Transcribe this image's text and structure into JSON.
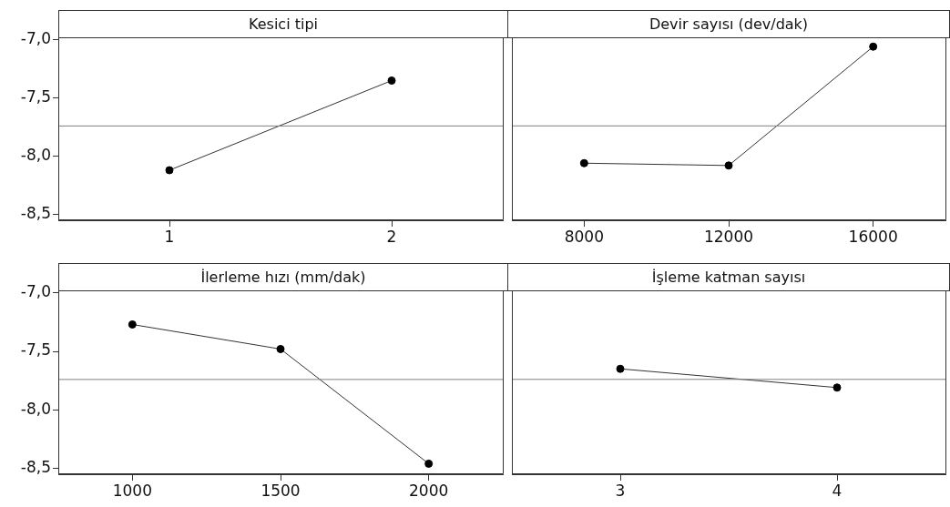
{
  "chart_data": [
    {
      "type": "line",
      "title": "Kesici tipi",
      "categories": [
        "1",
        "2"
      ],
      "series": [
        {
          "color": "#000000",
          "values": [
            -8.12,
            -7.35
          ]
        }
      ],
      "ylim": [
        -8.55,
        -6.98
      ],
      "yticks": [
        {
          "value": -8.5,
          "label": "-8,5"
        },
        {
          "value": -8,
          "label": "-8,0"
        },
        {
          "value": -7.5,
          "label": "-7,5"
        },
        {
          "value": -7,
          "label": "-7,0"
        }
      ],
      "ref_lines": [
        {
          "axis": "y",
          "value": -7.74,
          "color": "#808080"
        }
      ],
      "marker": "circle",
      "grid": false,
      "legend": false
    },
    {
      "type": "line",
      "title": "Devir sayısı (dev/dak)",
      "categories": [
        "8000",
        "12000",
        "16000"
      ],
      "series": [
        {
          "color": "#000000",
          "values": [
            -8.06,
            -8.08,
            -7.06
          ]
        }
      ],
      "ylim": [
        -8.55,
        -6.98
      ],
      "ref_lines": [
        {
          "axis": "y",
          "value": -7.74,
          "color": "#808080"
        }
      ],
      "marker": "circle",
      "grid": false,
      "legend": false,
      "tick_labels": "x"
    },
    {
      "type": "line",
      "title": "İlerleme hızı (mm/dak)",
      "categories": [
        "1000",
        "1500",
        "2000"
      ],
      "series": [
        {
          "color": "#000000",
          "values": [
            -7.27,
            -7.48,
            -8.46
          ]
        }
      ],
      "ylim": [
        -8.55,
        -6.98
      ],
      "yticks": [
        {
          "value": -8.5,
          "label": "-8,5"
        },
        {
          "value": -8,
          "label": "-8,0"
        },
        {
          "value": -7.5,
          "label": "-7,5"
        },
        {
          "value": -7,
          "label": "-7,0"
        }
      ],
      "ref_lines": [
        {
          "axis": "y",
          "value": -7.74,
          "color": "#808080"
        }
      ],
      "marker": "circle",
      "grid": false,
      "legend": false
    },
    {
      "type": "line",
      "title": "İşleme katman sayısı",
      "categories": [
        "3",
        "4"
      ],
      "series": [
        {
          "color": "#000000",
          "values": [
            -7.65,
            -7.81
          ]
        }
      ],
      "ylim": [
        -8.55,
        -6.98
      ],
      "ref_lines": [
        {
          "axis": "y",
          "value": -7.74,
          "color": "#808080"
        }
      ],
      "marker": "circle",
      "grid": false,
      "legend": false,
      "tick_labels": "x"
    }
  ]
}
